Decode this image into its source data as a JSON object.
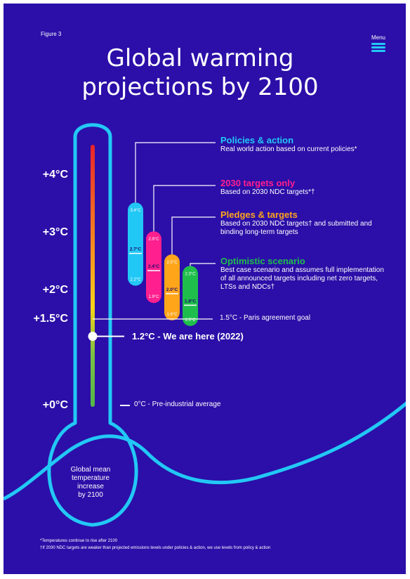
{
  "header": {
    "figure_label": "Figure 3",
    "menu_label": "Menu",
    "title_line1": "Global warming",
    "title_line2": "projections by 2100"
  },
  "thermometer": {
    "bulb_lines": [
      "Global mean",
      "temperature",
      "increase",
      "by 2100"
    ],
    "gradient_colors": [
      "#e8232a",
      "#f68a1e",
      "#f7d417",
      "#7bc143",
      "#53b848"
    ],
    "outline_color": "#22c8f5"
  },
  "chart_data": {
    "type": "range",
    "y_axis_ticks": [
      "+0°C",
      "+1.5°C",
      "+2°C",
      "+3°C",
      "+4°C"
    ],
    "ylim": [
      0,
      4.2
    ],
    "scenarios": [
      {
        "name": "Policies & action",
        "description": "Real world action based on current policies*",
        "low": 2.2,
        "mid": 2.7,
        "high": 3.4,
        "low_label": "2.2°C",
        "mid_label": "2.7°C",
        "high_label": "3.4°C",
        "color": "#22c8f5"
      },
      {
        "name": "2030 targets only",
        "description": "Based on 2030 NDC targets*†",
        "low": 1.9,
        "mid": 2.4,
        "high": 2.9,
        "low_label": "1.9°C",
        "mid_label": "2.4°C",
        "high_label": "2.9°C",
        "color": "#ff1f8e"
      },
      {
        "name": "Pledges & targets",
        "description": "Based on 2030 NDC targets† and submitted and binding long-term targets",
        "low": 1.6,
        "mid": 2.0,
        "high": 2.5,
        "low_label": "1.6°C",
        "mid_label": "2.0°C",
        "high_label": "2.5°C",
        "color": "#ffa51a"
      },
      {
        "name": "Optimistic scenario",
        "description": "Best case scenario and assumes full implementation of all announced targets including net zero targets, LTSs and NDCs†",
        "low": 1.5,
        "mid": 1.8,
        "high": 2.3,
        "low_label": "1.5°C",
        "mid_label": "1.8°C",
        "high_label": "2.3°C",
        "color": "#1fbe4c"
      }
    ],
    "reference_lines": [
      {
        "value": 1.5,
        "label": "1.5°C - Paris agreement goal"
      },
      {
        "value": 1.2,
        "label": "1.2°C - We are here (2022)"
      },
      {
        "value": 0,
        "label": "0°C - Pre-industrial average"
      }
    ]
  },
  "footnotes": [
    "*Temperatures continue to rise after 2100",
    "†If 2030 NDC targets are weaker than projected emissions levels under policies & action, we use levels from policy & action"
  ]
}
